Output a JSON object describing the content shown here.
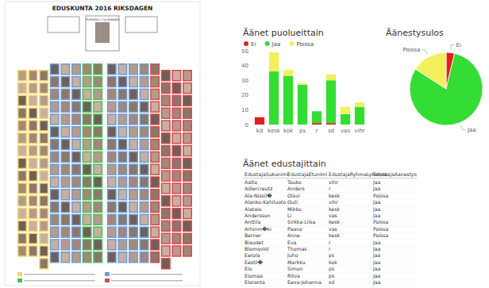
{
  "chart_data": [
    {
      "type": "bar",
      "title": "Äänet puolueittain",
      "stacked": true,
      "legend": "top",
      "grid": false,
      "categories": [
        "kd",
        "kesk",
        "kok",
        "ps",
        "r",
        "sd",
        "vas",
        "vihr"
      ],
      "series": [
        {
          "name": "Ei",
          "color": "#e0201e",
          "values": [
            5,
            0,
            0,
            0,
            1,
            1,
            0,
            0
          ]
        },
        {
          "name": "Jaa",
          "color": "#33dd33",
          "values": [
            0,
            36,
            33,
            27,
            8,
            29,
            7,
            12
          ]
        },
        {
          "name": "Poissa",
          "color": "#f3ef5c",
          "values": [
            0,
            13,
            4,
            1,
            0,
            4,
            5,
            3
          ]
        }
      ],
      "ylim": [
        0,
        50
      ],
      "yticks": [
        0,
        10,
        20,
        30,
        40,
        50
      ]
    },
    {
      "type": "pie",
      "title": "Äänestysulos",
      "categories": [
        "Ei",
        "Jaa",
        "Poissa"
      ],
      "values": [
        7,
        152,
        30
      ],
      "colors": [
        "#e0201e",
        "#33dd33",
        "#f3ef5c"
      ]
    }
  ],
  "seat_map": {
    "title": "EDUSKUNTA 2016 RIKSDAGEN",
    "speaker": "PUHEMIES | TALMANNEN"
  },
  "table": {
    "title": "Äänet edustajittain",
    "columns": [
      "EdustajaSukunimi",
      "EdustajaEtunimi",
      "EdustajaRyhmaLyhenne",
      "EdustajaAanestys"
    ],
    "rows": [
      [
        "Aalto",
        "Touko",
        "vihr",
        "Jaa"
      ],
      [
        "Adlercreutz",
        "Anders",
        "r",
        "Jaa"
      ],
      [
        "Ala-Nissil�",
        "Olavi",
        "kesk",
        "Poissa"
      ],
      [
        "Alanko-Kahiluoto",
        "Outi",
        "vihr",
        "Jaa"
      ],
      [
        "Alatalo",
        "Mikko",
        "kesk",
        "Jaa"
      ],
      [
        "Andersson",
        "Li",
        "vas",
        "Jaa"
      ],
      [
        "Anttila",
        "Sirkka-Liisa",
        "kesk",
        "Poissa"
      ],
      [
        "Arhinm�ki",
        "Paavo",
        "vas",
        "Poissa"
      ],
      [
        "Berner",
        "Anne",
        "kesk",
        "Poissa"
      ],
      [
        "Biaudet",
        "Eva",
        "r",
        "Jaa"
      ],
      [
        "Blomqvist",
        "Thomas",
        "r",
        "Jaa"
      ],
      [
        "Eerola",
        "Juho",
        "ps",
        "Jaa"
      ],
      [
        "Eestil�",
        "Markku",
        "kok",
        "Jaa"
      ],
      [
        "Elo",
        "Simon",
        "ps",
        "Jaa"
      ],
      [
        "Elomaa",
        "Ritva",
        "ps",
        "Jaa"
      ],
      [
        "Eloranta",
        "Eeva-Johanna",
        "sd",
        "Jaa"
      ]
    ]
  }
}
